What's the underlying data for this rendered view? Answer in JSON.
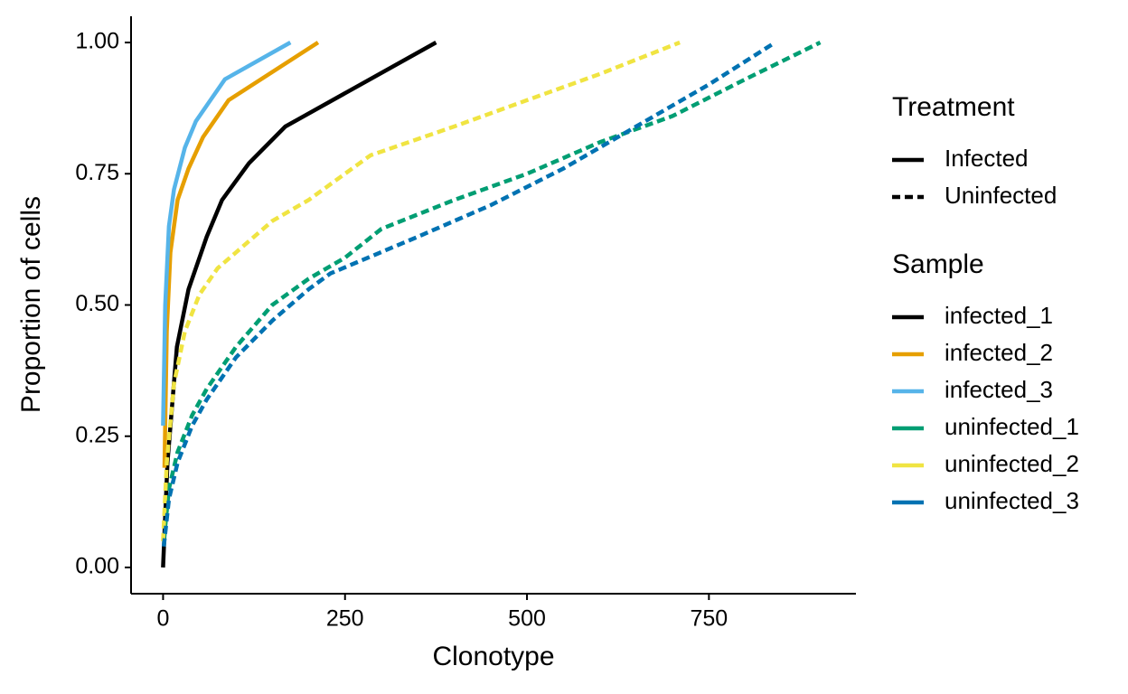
{
  "chart_data": {
    "type": "line",
    "x_label": "Clonotype",
    "y_label": "Proportion of cells",
    "xlim": [
      -44,
      952
    ],
    "ylim": [
      -0.05,
      1.05
    ],
    "xticks": [
      0,
      250,
      500,
      750
    ],
    "yticks": [
      {
        "value": 0,
        "label": "0.00"
      },
      {
        "value": 0.25,
        "label": "0.25"
      },
      {
        "value": 0.5,
        "label": "0.50"
      },
      {
        "value": 0.75,
        "label": "0.75"
      },
      {
        "value": 1,
        "label": "1.00"
      }
    ],
    "grid": false,
    "linetype_legend": {
      "title": "Treatment",
      "names": [
        "Infected",
        "Uninfected"
      ],
      "dashed": [
        false,
        true
      ]
    },
    "legend_title": "Sample",
    "series": [
      {
        "name": "infected_1",
        "color": "#000000",
        "dashed": false,
        "x": [
          0,
          6,
          19,
          35,
          60,
          81,
          118,
          168,
          375
        ],
        "values": [
          0,
          0.2,
          0.42,
          0.53,
          0.63,
          0.7,
          0.77,
          0.84,
          1.0
        ]
      },
      {
        "name": "infected_2",
        "color": "#e69f00",
        "dashed": false,
        "x": [
          2,
          5,
          10,
          20,
          35,
          55,
          90,
          213
        ],
        "values": [
          0.19,
          0.45,
          0.6,
          0.7,
          0.76,
          0.82,
          0.89,
          1.0
        ]
      },
      {
        "name": "infected_3",
        "color": "#56b4e9",
        "dashed": false,
        "x": [
          0,
          3,
          8,
          15,
          30,
          45,
          65,
          85,
          175
        ],
        "values": [
          0.27,
          0.5,
          0.65,
          0.72,
          0.8,
          0.85,
          0.89,
          0.93,
          1.0
        ]
      },
      {
        "name": "uninfected_1",
        "color": "#009e73",
        "dashed": true,
        "x": [
          1,
          8,
          20,
          40,
          60,
          100,
          150,
          200,
          250,
          300,
          400,
          500,
          600,
          700,
          800,
          903
        ],
        "values": [
          0.05,
          0.15,
          0.22,
          0.29,
          0.34,
          0.42,
          0.5,
          0.55,
          0.59,
          0.645,
          0.7,
          0.75,
          0.81,
          0.86,
          0.93,
          1.0
        ]
      },
      {
        "name": "uninfected_2",
        "color": "#f0e442",
        "dashed": true,
        "x": [
          0,
          5,
          15,
          30,
          50,
          75,
          100,
          150,
          200,
          285,
          400,
          500,
          600,
          710
        ],
        "values": [
          0.05,
          0.2,
          0.35,
          0.45,
          0.52,
          0.57,
          0.6,
          0.66,
          0.7,
          0.785,
          0.84,
          0.89,
          0.94,
          1.0
        ]
      },
      {
        "name": "uninfected_3",
        "color": "#0072b2",
        "dashed": true,
        "x": [
          1,
          8,
          20,
          40,
          60,
          100,
          150,
          200,
          230,
          350,
          450,
          550,
          650,
          750,
          841
        ],
        "values": [
          0.04,
          0.13,
          0.2,
          0.27,
          0.32,
          0.4,
          0.47,
          0.53,
          0.56,
          0.63,
          0.69,
          0.76,
          0.84,
          0.92,
          1.0
        ]
      }
    ]
  }
}
